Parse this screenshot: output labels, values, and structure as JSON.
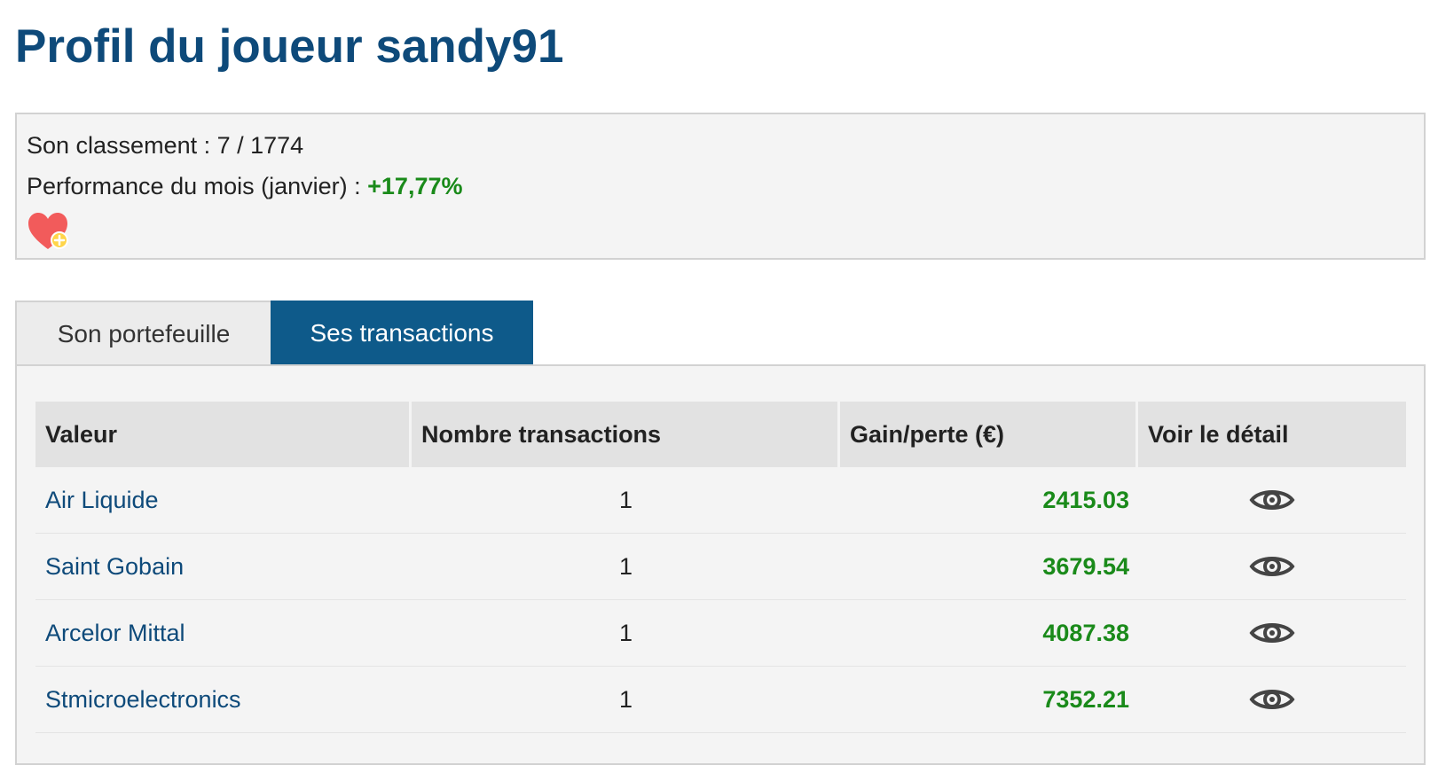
{
  "header": {
    "title": "Profil du joueur sandy91"
  },
  "info": {
    "ranking_label": "Son classement : ",
    "ranking_value": "7 / 1774",
    "performance_label": "Performance du mois (janvier) : ",
    "performance_value": "+17,77%",
    "favorite_icon": "heart-plus-icon"
  },
  "tabs": [
    {
      "label": "Son portefeuille",
      "active": false
    },
    {
      "label": "Ses transactions",
      "active": true
    }
  ],
  "table": {
    "columns": [
      "Valeur",
      "Nombre transactions",
      "Gain/perte (€)",
      "Voir le détail"
    ],
    "rows": [
      {
        "valeur": "Air Liquide",
        "nombre": "1",
        "gain": "2415.03",
        "detail_icon": "eye-icon"
      },
      {
        "valeur": "Saint Gobain",
        "nombre": "1",
        "gain": "3679.54",
        "detail_icon": "eye-icon"
      },
      {
        "valeur": "Arcelor Mittal",
        "nombre": "1",
        "gain": "4087.38",
        "detail_icon": "eye-icon"
      },
      {
        "valeur": "Stmicroelectronics",
        "nombre": "1",
        "gain": "7352.21",
        "detail_icon": "eye-icon"
      }
    ]
  },
  "colors": {
    "title": "#0e4a7a",
    "active_tab": "#0e5a8a",
    "gain": "#1a8a1a",
    "link": "#0e4a7a",
    "heart": "#f25b5b"
  }
}
